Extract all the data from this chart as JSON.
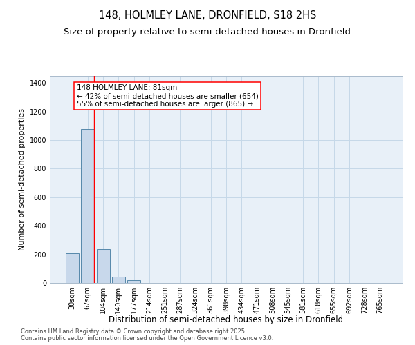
{
  "title": "148, HOLMLEY LANE, DRONFIELD, S18 2HS",
  "subtitle": "Size of property relative to semi-detached houses in Dronfield",
  "xlabel": "Distribution of semi-detached houses by size in Dronfield",
  "ylabel": "Number of semi-detached properties",
  "categories": [
    "30sqm",
    "67sqm",
    "104sqm",
    "140sqm",
    "177sqm",
    "214sqm",
    "251sqm",
    "287sqm",
    "324sqm",
    "361sqm",
    "398sqm",
    "434sqm",
    "471sqm",
    "508sqm",
    "545sqm",
    "581sqm",
    "618sqm",
    "655sqm",
    "692sqm",
    "728sqm",
    "765sqm"
  ],
  "values": [
    210,
    1080,
    235,
    45,
    20,
    0,
    0,
    0,
    0,
    0,
    0,
    0,
    0,
    0,
    0,
    0,
    0,
    0,
    0,
    0,
    0
  ],
  "bar_color": "#c8d8eb",
  "bar_edge_color": "#5588aa",
  "grid_color": "#c5d8e8",
  "background_color": "#e8f0f8",
  "red_line_x": 1.42,
  "annotation_text": "148 HOLMLEY LANE: 81sqm\n← 42% of semi-detached houses are smaller (654)\n55% of semi-detached houses are larger (865) →",
  "ylim": [
    0,
    1450
  ],
  "yticks": [
    0,
    200,
    400,
    600,
    800,
    1000,
    1200,
    1400
  ],
  "footer": "Contains HM Land Registry data © Crown copyright and database right 2025.\nContains public sector information licensed under the Open Government Licence v3.0.",
  "title_fontsize": 10.5,
  "subtitle_fontsize": 9.5,
  "xlabel_fontsize": 8.5,
  "ylabel_fontsize": 8,
  "tick_fontsize": 7,
  "annotation_fontsize": 7.5,
  "footer_fontsize": 6
}
